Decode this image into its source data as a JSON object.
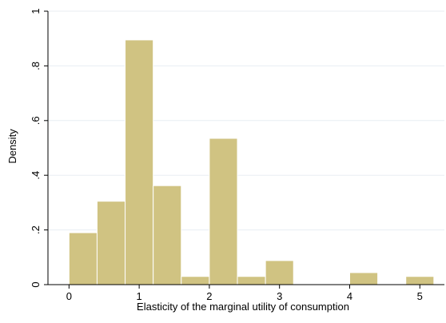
{
  "chart_data": {
    "type": "bar",
    "title": "",
    "xlabel": "Elasticity of the marginal utility of consumption",
    "ylabel": "Density",
    "xlim": [
      -0.3,
      5.35
    ],
    "ylim": [
      0,
      1
    ],
    "xticks": [
      0,
      1,
      2,
      3,
      4,
      5
    ],
    "xtick_labels": [
      "0",
      "1",
      "2",
      "3",
      "4",
      "5"
    ],
    "yticks": [
      0,
      0.2,
      0.4,
      0.6,
      0.8,
      1
    ],
    "ytick_labels": [
      "0",
      ".2",
      ".4",
      ".6",
      ".8",
      "1"
    ],
    "grid": true,
    "bin_width": 0.4,
    "bins": [
      {
        "x0": 0.0,
        "x1": 0.4,
        "density": 0.19
      },
      {
        "x0": 0.4,
        "x1": 0.8,
        "density": 0.305
      },
      {
        "x0": 0.8,
        "x1": 1.2,
        "density": 0.895
      },
      {
        "x0": 1.2,
        "x1": 1.6,
        "density": 0.362
      },
      {
        "x0": 1.6,
        "x1": 2.0,
        "density": 0.03
      },
      {
        "x0": 2.0,
        "x1": 2.4,
        "density": 0.535
      },
      {
        "x0": 2.4,
        "x1": 2.8,
        "density": 0.03
      },
      {
        "x0": 2.8,
        "x1": 3.2,
        "density": 0.088
      },
      {
        "x0": 3.2,
        "x1": 3.6,
        "density": 0.0
      },
      {
        "x0": 3.6,
        "x1": 4.0,
        "density": 0.0
      },
      {
        "x0": 4.0,
        "x1": 4.4,
        "density": 0.044
      },
      {
        "x0": 4.4,
        "x1": 4.8,
        "density": 0.0
      },
      {
        "x0": 4.8,
        "x1": 5.2,
        "density": 0.03
      }
    ],
    "colors": {
      "bar_fill": "#d0c382",
      "bar_stroke": "#ffffff",
      "grid": "#e8eef2",
      "axis": "#000000"
    }
  }
}
